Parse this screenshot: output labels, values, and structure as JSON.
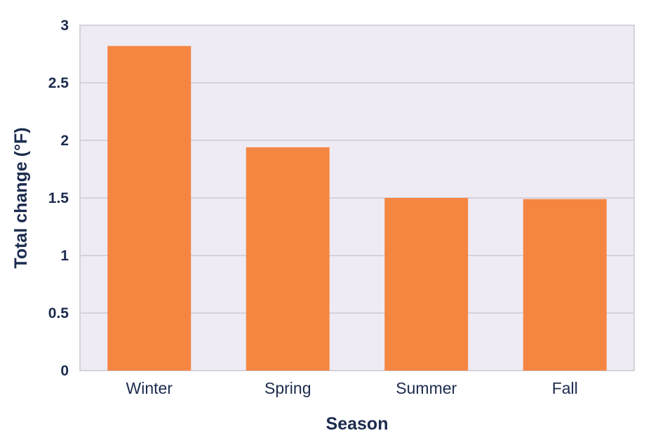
{
  "colors": {
    "bar": "#f58642",
    "plot_background": "#eeebf4",
    "gridline": "#d6d2dc",
    "text": "#1c2b4e",
    "frame": "#d6d2dc"
  },
  "chart_data": {
    "type": "bar",
    "title": "",
    "xlabel": "Season",
    "ylabel": "Total change (°F)",
    "categories": [
      "Winter",
      "Spring",
      "Summer",
      "Fall"
    ],
    "values": [
      2.82,
      1.94,
      1.5,
      1.49
    ],
    "ylim": [
      0,
      3
    ],
    "yticks": [
      0,
      0.5,
      1,
      1.5,
      2,
      2.5,
      3
    ],
    "ytick_labels": [
      "0",
      "0.5",
      "1",
      "1.5",
      "2",
      "2.5",
      "3"
    ],
    "grid": true,
    "legend": "none"
  }
}
